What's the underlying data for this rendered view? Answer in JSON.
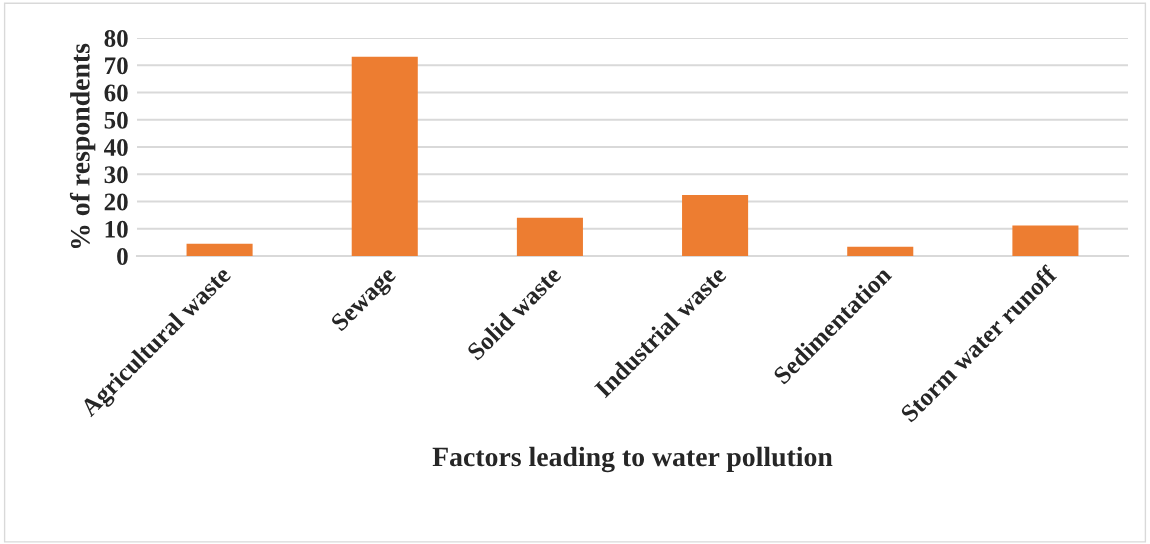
{
  "chart_data": {
    "type": "bar",
    "xlabel": "Factors leading to water pollution",
    "ylabel": "% of respondents",
    "categories": [
      "Agricultural waste",
      "Sewage",
      "Solid waste",
      "Industrial waste",
      "Sedimentation",
      "Storm water runoff"
    ],
    "values": [
      4.5,
      73.1,
      14.0,
      22.4,
      3.4,
      11.2
    ],
    "color": "#ed7d31",
    "ylim": [
      0,
      80
    ],
    "yticks": [
      0,
      10,
      20,
      30,
      40,
      50,
      60,
      70,
      80
    ],
    "grid": "y"
  }
}
